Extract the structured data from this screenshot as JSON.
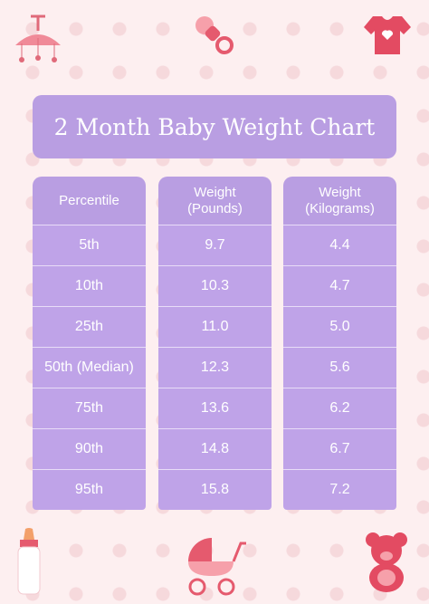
{
  "header": {
    "title": "2 Month Baby Weight Chart"
  },
  "table": {
    "columns": [
      [
        "Percentile"
      ],
      [
        "Weight",
        "(Pounds)"
      ],
      [
        "Weight",
        "(Kilograms)"
      ]
    ],
    "rows": [
      [
        "5th",
        "9.7",
        "4.4"
      ],
      [
        "10th",
        "10.3",
        "4.7"
      ],
      [
        "25th",
        "11.0",
        "5.0"
      ],
      [
        "50th (Median)",
        "12.3",
        "5.6"
      ],
      [
        "75th",
        "13.6",
        "6.2"
      ],
      [
        "90th",
        "14.8",
        "6.7"
      ],
      [
        "95th",
        "15.8",
        "7.2"
      ]
    ]
  }
}
